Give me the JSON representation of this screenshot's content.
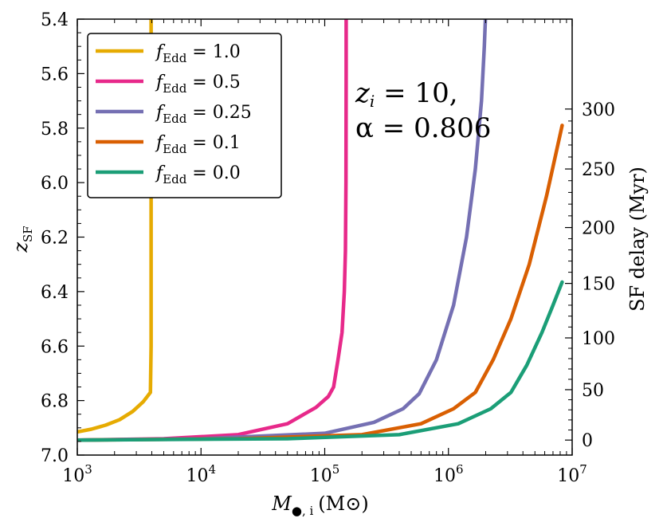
{
  "chart_data": {
    "type": "line",
    "title": "",
    "xlabel": {
      "main": "M",
      "sub": "●, i",
      "unit": "(M⊙)"
    },
    "ylabel_left": {
      "main": "z",
      "sub": "SF"
    },
    "ylabel_right": "SF delay (Myr)",
    "x_scale": "log",
    "xlim": [
      1000,
      10000000
    ],
    "ylim": [
      7.0,
      5.4
    ],
    "y_inverted": true,
    "x_ticks": [
      {
        "value": 1000,
        "base": "10",
        "exp": "3"
      },
      {
        "value": 10000,
        "base": "10",
        "exp": "4"
      },
      {
        "value": 100000,
        "base": "10",
        "exp": "5"
      },
      {
        "value": 1000000,
        "base": "10",
        "exp": "6"
      },
      {
        "value": 10000000,
        "base": "10",
        "exp": "7"
      }
    ],
    "y_ticks": [
      {
        "value": 5.4,
        "label": "5.4"
      },
      {
        "value": 5.6,
        "label": "5.6"
      },
      {
        "value": 5.8,
        "label": "5.8"
      },
      {
        "value": 6.0,
        "label": "6.0"
      },
      {
        "value": 6.2,
        "label": "6.2"
      },
      {
        "value": 6.4,
        "label": "6.4"
      },
      {
        "value": 6.6,
        "label": "6.6"
      },
      {
        "value": 6.8,
        "label": "6.8"
      },
      {
        "value": 7.0,
        "label": "7.0"
      }
    ],
    "right_ticks": [
      {
        "z": 6.945,
        "label": "0"
      },
      {
        "z": 6.76,
        "label": "50"
      },
      {
        "z": 6.57,
        "label": "100"
      },
      {
        "z": 6.37,
        "label": "150"
      },
      {
        "z": 6.165,
        "label": "200"
      },
      {
        "z": 5.95,
        "label": "250"
      },
      {
        "z": 5.73,
        "label": "300"
      }
    ],
    "annotation": {
      "line1": "z",
      "line1_sub": "i",
      "line1_rest": " = 10,",
      "line2": "α = 0.806"
    },
    "legend_position": "upper-left",
    "series": [
      {
        "name": "fEdd = 1.0",
        "legend_prefix": "f",
        "legend_sub": "Edd",
        "legend_value": " = 1.0",
        "color": "#e6ab02",
        "points": [
          [
            1000,
            6.915
          ],
          [
            1300,
            6.905
          ],
          [
            1700,
            6.89
          ],
          [
            2200,
            6.87
          ],
          [
            2800,
            6.84
          ],
          [
            3400,
            6.805
          ],
          [
            3900,
            6.77
          ],
          [
            3950,
            6.6
          ],
          [
            3950,
            6.0
          ],
          [
            3950,
            5.4
          ]
        ]
      },
      {
        "name": "fEdd = 0.5",
        "legend_prefix": "f",
        "legend_sub": "Edd",
        "legend_value": " = 0.5",
        "color": "#e7298a",
        "points": [
          [
            1000,
            6.945
          ],
          [
            5000,
            6.94
          ],
          [
            20000,
            6.925
          ],
          [
            50000,
            6.885
          ],
          [
            85000,
            6.825
          ],
          [
            107000,
            6.785
          ],
          [
            118000,
            6.75
          ],
          [
            128000,
            6.65
          ],
          [
            138000,
            6.55
          ],
          [
            144000,
            6.4
          ],
          [
            147000,
            6.25
          ],
          [
            148500,
            6.0
          ],
          [
            149000,
            5.6
          ],
          [
            149000,
            5.4
          ]
        ]
      },
      {
        "name": "fEdd = 0.25",
        "legend_prefix": "f",
        "legend_sub": "Edd",
        "legend_value": " = 0.25",
        "color": "#7570b3",
        "points": [
          [
            1000,
            6.945
          ],
          [
            10000,
            6.94
          ],
          [
            100000,
            6.92
          ],
          [
            250000,
            6.88
          ],
          [
            430000,
            6.83
          ],
          [
            580000,
            6.775
          ],
          [
            800000,
            6.65
          ],
          [
            1100000,
            6.45
          ],
          [
            1400000,
            6.2
          ],
          [
            1650000,
            5.95
          ],
          [
            1850000,
            5.7
          ],
          [
            1950000,
            5.5
          ],
          [
            1990000,
            5.4
          ]
        ]
      },
      {
        "name": "fEdd = 0.1",
        "legend_prefix": "f",
        "legend_sub": "Edd",
        "legend_value": " = 0.1",
        "color": "#d95f02",
        "points": [
          [
            1000,
            6.945
          ],
          [
            20000,
            6.94
          ],
          [
            200000,
            6.925
          ],
          [
            600000,
            6.885
          ],
          [
            1100000,
            6.83
          ],
          [
            1650000,
            6.77
          ],
          [
            2300000,
            6.65
          ],
          [
            3200000,
            6.5
          ],
          [
            4500000,
            6.3
          ],
          [
            6200000,
            6.05
          ],
          [
            8300000,
            5.79
          ]
        ]
      },
      {
        "name": "fEdd = 0.0",
        "legend_prefix": "f",
        "legend_sub": "Edd",
        "legend_value": " = 0.0",
        "color": "#1b9e77",
        "points": [
          [
            1000,
            6.945
          ],
          [
            50000,
            6.94
          ],
          [
            400000,
            6.925
          ],
          [
            1200000,
            6.885
          ],
          [
            2200000,
            6.83
          ],
          [
            3200000,
            6.77
          ],
          [
            4300000,
            6.67
          ],
          [
            5700000,
            6.55
          ],
          [
            7000000,
            6.45
          ],
          [
            8300000,
            6.365
          ]
        ]
      }
    ]
  }
}
